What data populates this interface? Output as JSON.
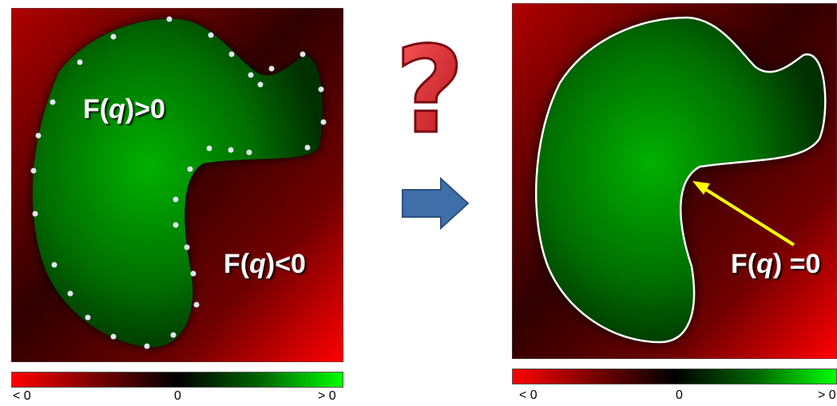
{
  "left_panel": {
    "label_inside_prefix": "F(",
    "label_inside_var": "q",
    "label_inside_suffix": ")>0",
    "label_outside_prefix": "F(",
    "label_outside_var": "q",
    "label_outside_suffix": ")<0",
    "colorbar": {
      "left": "< 0",
      "mid": "0",
      "right": "> 0"
    }
  },
  "middle": {
    "question_symbol": "?",
    "arrow_icon": "right-arrow-icon"
  },
  "right_panel": {
    "label_surface_prefix": "F(",
    "label_surface_var": "q",
    "label_surface_suffix": ") =0",
    "colorbar": {
      "left": "< 0",
      "mid": "0",
      "right": "> 0"
    }
  },
  "colors": {
    "negative": "#ff0000",
    "zero": "#000000",
    "positive": "#00ff00",
    "contour": "#ffffff",
    "pointer_arrow": "#ffff00",
    "flow_arrow": "#3f6ea8",
    "question_mark": "#e8202a"
  }
}
